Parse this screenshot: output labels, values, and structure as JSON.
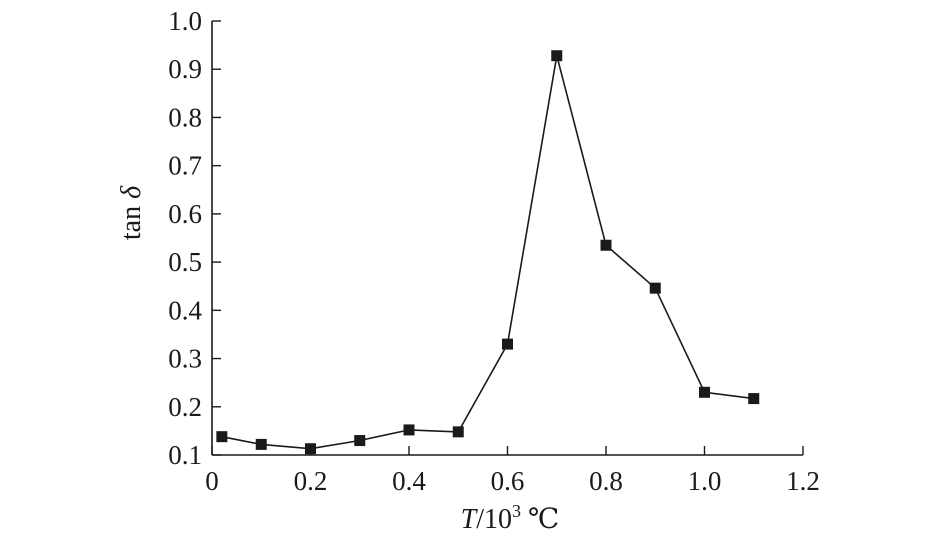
{
  "chart_data": {
    "type": "line",
    "title": "",
    "xlabel_italic": "T",
    "xlabel_rest": "/10",
    "xlabel_sup": "3",
    "xlabel_unit": " ℃",
    "ylabel_text": "tan ",
    "ylabel_symbol": "δ",
    "xlim": [
      0,
      1.2
    ],
    "ylim": [
      0.1,
      1.0
    ],
    "xticks": [
      0,
      0.2,
      0.4,
      0.6,
      0.8,
      1.0,
      1.2
    ],
    "xtick_labels": [
      "0",
      "0.2",
      "0.4",
      "0.6",
      "0.8",
      "1.0",
      "1.2"
    ],
    "yticks": [
      0.1,
      0.2,
      0.3,
      0.4,
      0.5,
      0.6,
      0.7,
      0.8,
      0.9,
      1.0
    ],
    "ytick_labels": [
      "0.1",
      "0.2",
      "0.3",
      "0.4",
      "0.5",
      "0.6",
      "0.7",
      "0.8",
      "0.9",
      "1.0"
    ],
    "grid": false,
    "marker": "square",
    "series": [
      {
        "x": [
          0.02,
          0.1,
          0.2,
          0.3,
          0.4,
          0.5,
          0.6,
          0.7,
          0.8,
          0.9,
          1.0,
          1.1
        ],
        "y": [
          0.138,
          0.122,
          0.113,
          0.13,
          0.152,
          0.148,
          0.33,
          0.928,
          0.535,
          0.446,
          0.23,
          0.217
        ],
        "color": "#1a1a1a"
      }
    ]
  }
}
